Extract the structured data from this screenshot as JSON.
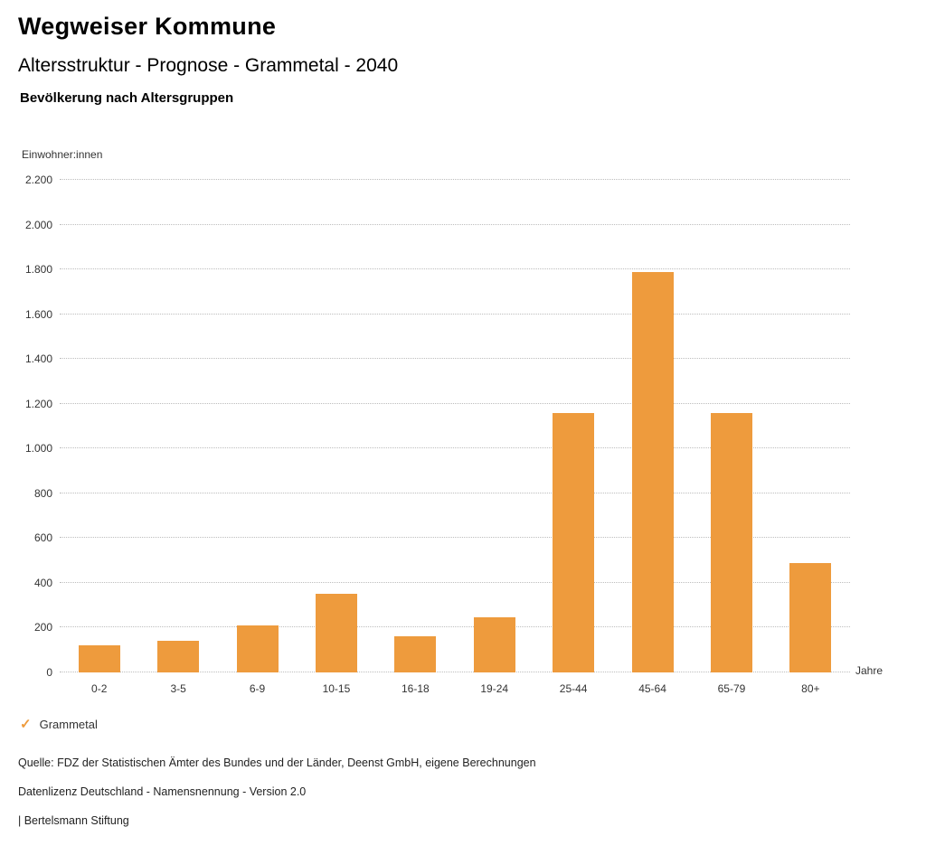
{
  "header": {
    "title": "Wegweiser Kommune",
    "subtitle": "Altersstruktur - Prognose - Grammetal - 2040",
    "section": "Bevölkerung nach Altersgruppen"
  },
  "chart_data": {
    "type": "bar",
    "title": "Bevölkerung nach Altersgruppen",
    "ylabel": "Einwohner:innen",
    "xlabel": "Jahre",
    "categories": [
      "0-2",
      "3-5",
      "6-9",
      "10-15",
      "16-18",
      "19-24",
      "25-44",
      "45-64",
      "65-79",
      "80+"
    ],
    "series": [
      {
        "name": "Grammetal",
        "values": [
          120,
          140,
          210,
          350,
          160,
          245,
          1160,
          1790,
          1160,
          490
        ]
      }
    ],
    "ylim": [
      0,
      2200
    ],
    "y_ticks": [
      {
        "value": 0,
        "label": "0"
      },
      {
        "value": 200,
        "label": "200"
      },
      {
        "value": 400,
        "label": "400"
      },
      {
        "value": 600,
        "label": "600"
      },
      {
        "value": 800,
        "label": "800"
      },
      {
        "value": 1000,
        "label": "1.000"
      },
      {
        "value": 1200,
        "label": "1.200"
      },
      {
        "value": 1400,
        "label": "1.400"
      },
      {
        "value": 1600,
        "label": "1.600"
      },
      {
        "value": 1800,
        "label": "1.800"
      },
      {
        "value": 2000,
        "label": "2.000"
      },
      {
        "value": 2200,
        "label": "2.200"
      }
    ],
    "bar_color": "#EE9B3D",
    "grid": "dotted horizontal",
    "legend_position": "bottom-left"
  },
  "legend": {
    "label": "Grammetal",
    "check_color": "#EE9B3D"
  },
  "footer": {
    "source": "Quelle: FDZ der Statistischen Ämter des Bundes und der Länder, Deenst GmbH, eigene Berechnungen",
    "license": "Datenlizenz Deutschland - Namensnennung - Version 2.0",
    "attribution": "| Bertelsmann Stiftung"
  }
}
